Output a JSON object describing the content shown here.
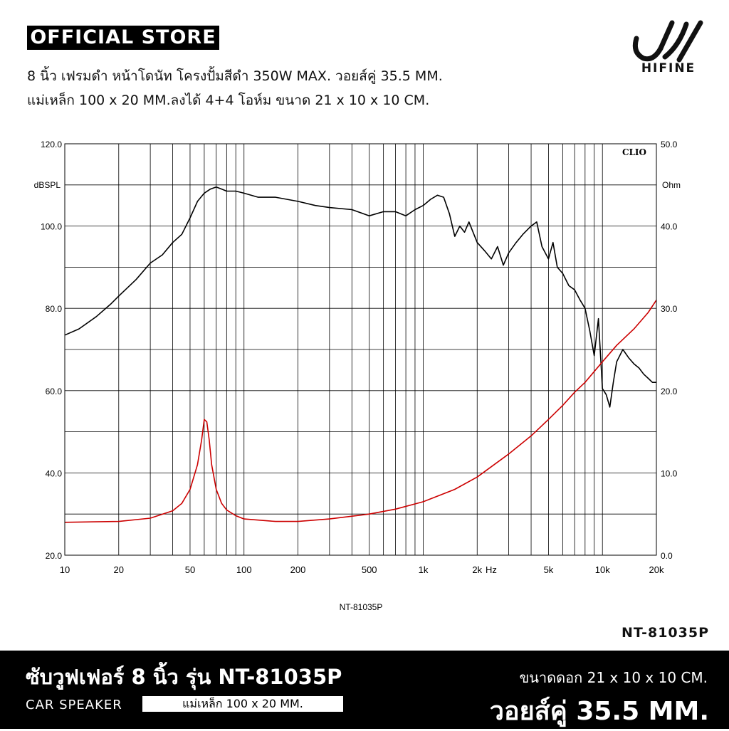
{
  "header": {
    "badge": "OFFICIAL STORE",
    "line1": "8 นิ้ว เฟรมดำ หน้าโดนัท โครงปั้มสีดำ 350W MAX. วอยส์คู่ 35.5 MM.",
    "line2": "แม่เหล็ก 100 x 20 MM.ลงได้ 4+4 โอห์ม ขนาด 21 x 10 x 10 CM.",
    "brand": "HIFINE"
  },
  "chart_data": {
    "type": "line",
    "watermark": "CLIO",
    "caption": "NT-81035P",
    "x_scale": "log",
    "xlim": [
      10,
      20000
    ],
    "x_ticks": [
      {
        "value": 10,
        "label": "10"
      },
      {
        "value": 20,
        "label": "20"
      },
      {
        "value": 50,
        "label": "50"
      },
      {
        "value": 100,
        "label": "100"
      },
      {
        "value": 200,
        "label": "200"
      },
      {
        "value": 500,
        "label": "500"
      },
      {
        "value": 1000,
        "label": "1k"
      },
      {
        "value": 2000,
        "label": "2k"
      },
      {
        "value": 5000,
        "label": "5k"
      },
      {
        "value": 10000,
        "label": "10k"
      },
      {
        "value": 20000,
        "label": "20k"
      }
    ],
    "x_unit": "Hz",
    "y_left": {
      "unit": "dBSPL",
      "ylim": [
        20,
        120
      ],
      "ticks": [
        "20.0",
        "40.0",
        "60.0",
        "80.0",
        "100.0",
        "120.0"
      ]
    },
    "y_right": {
      "unit": "Ohm",
      "ylim": [
        0,
        50
      ],
      "ticks": [
        "0.0",
        "10.0",
        "20.0",
        "30.0",
        "40.0",
        "50.0"
      ]
    },
    "grid": true,
    "series": [
      {
        "axis": "left",
        "color": "#000000",
        "x": [
          10,
          12,
          15,
          18,
          20,
          25,
          30,
          35,
          40,
          45,
          50,
          55,
          60,
          65,
          70,
          75,
          80,
          90,
          100,
          120,
          150,
          200,
          250,
          300,
          400,
          500,
          600,
          700,
          800,
          900,
          1000,
          1100,
          1200,
          1300,
          1400,
          1500,
          1600,
          1700,
          1800,
          2000,
          2200,
          2400,
          2600,
          2800,
          3000,
          3300,
          3600,
          4000,
          4300,
          4600,
          5000,
          5300,
          5600,
          6000,
          6500,
          7000,
          7500,
          8000,
          8500,
          9000,
          9500,
          10000,
          10500,
          11000,
          11500,
          12000,
          13000,
          14000,
          15000,
          16000,
          17000,
          18000,
          19000,
          20000
        ],
        "values": [
          73.5,
          75,
          78,
          81,
          83,
          87,
          91,
          93,
          96,
          98,
          102,
          106,
          108,
          109,
          109.5,
          109,
          108.5,
          108.5,
          108,
          107,
          107,
          106,
          105,
          104.5,
          104,
          102.5,
          103.5,
          103.5,
          102.5,
          104,
          105,
          106.5,
          107.5,
          107,
          103,
          97.5,
          100,
          98.5,
          101,
          96,
          94,
          92,
          95,
          90.5,
          93.5,
          96,
          98,
          100,
          101,
          95,
          92,
          96,
          90,
          88.5,
          85.5,
          84.5,
          82,
          80,
          74.5,
          68.5,
          77.5,
          60.5,
          59,
          56,
          62,
          67,
          70,
          68,
          66.5,
          65.5,
          64,
          63,
          62,
          62
        ]
      },
      {
        "axis": "right",
        "color": "#cc0000",
        "x": [
          10,
          20,
          30,
          40,
          45,
          50,
          55,
          58,
          60,
          62,
          64,
          66,
          70,
          75,
          80,
          90,
          100,
          150,
          200,
          300,
          500,
          700,
          1000,
          1500,
          2000,
          3000,
          4000,
          5000,
          6000,
          7000,
          8000,
          10000,
          12000,
          15000,
          18000,
          20000
        ],
        "values": [
          4,
          4.1,
          4.5,
          5.4,
          6.3,
          8,
          11,
          14,
          16.5,
          16.2,
          14,
          11,
          8,
          6.3,
          5.5,
          4.8,
          4.4,
          4.1,
          4.1,
          4.4,
          5,
          5.6,
          6.5,
          8,
          9.5,
          12.3,
          14.5,
          16.5,
          18.2,
          19.8,
          21,
          23.5,
          25.5,
          27.5,
          29.5,
          31
        ]
      }
    ]
  },
  "model_label": "NT-81035P",
  "footer": {
    "title": "ซับวูฟเฟอร์ 8 นิ้ว รุ่น NT-81035P",
    "category": "CAR SPEAKER",
    "magnet": "แม่เหล็ก 100 x 20 MM.",
    "size": "ขนาดดอก 21 x 10 x 10 CM.",
    "voice_coil": "วอยส์คู่ 35.5 MM."
  }
}
